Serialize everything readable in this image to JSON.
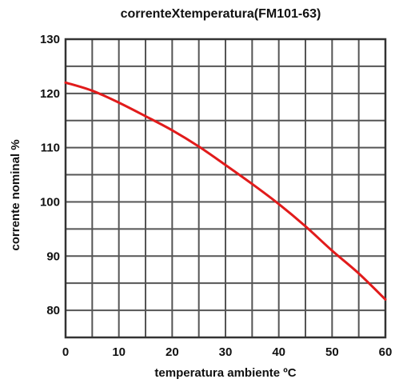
{
  "chart_data": {
    "type": "line",
    "title": "correnteXtemperatura(FM101-63)",
    "xlabel": "temperatura ambiente ºC",
    "ylabel": "corrente nominal %",
    "xlim": [
      0,
      60
    ],
    "ylim": [
      75,
      130
    ],
    "x_ticks": [
      "0",
      "10",
      "20",
      "30",
      "40",
      "50",
      "60"
    ],
    "y_ticks": [
      "80",
      "90",
      "100",
      "110",
      "120",
      "130"
    ],
    "grid": true,
    "series": [
      {
        "x": [
          0,
          5,
          10,
          15,
          20,
          25,
          30,
          35,
          40,
          45,
          50,
          55,
          60
        ],
        "y": [
          122,
          120.5,
          118.3,
          115.8,
          113.2,
          110.2,
          106.8,
          103.3,
          99.6,
          95.5,
          91,
          86.8,
          82
        ],
        "color": "#e11b1b"
      }
    ]
  }
}
